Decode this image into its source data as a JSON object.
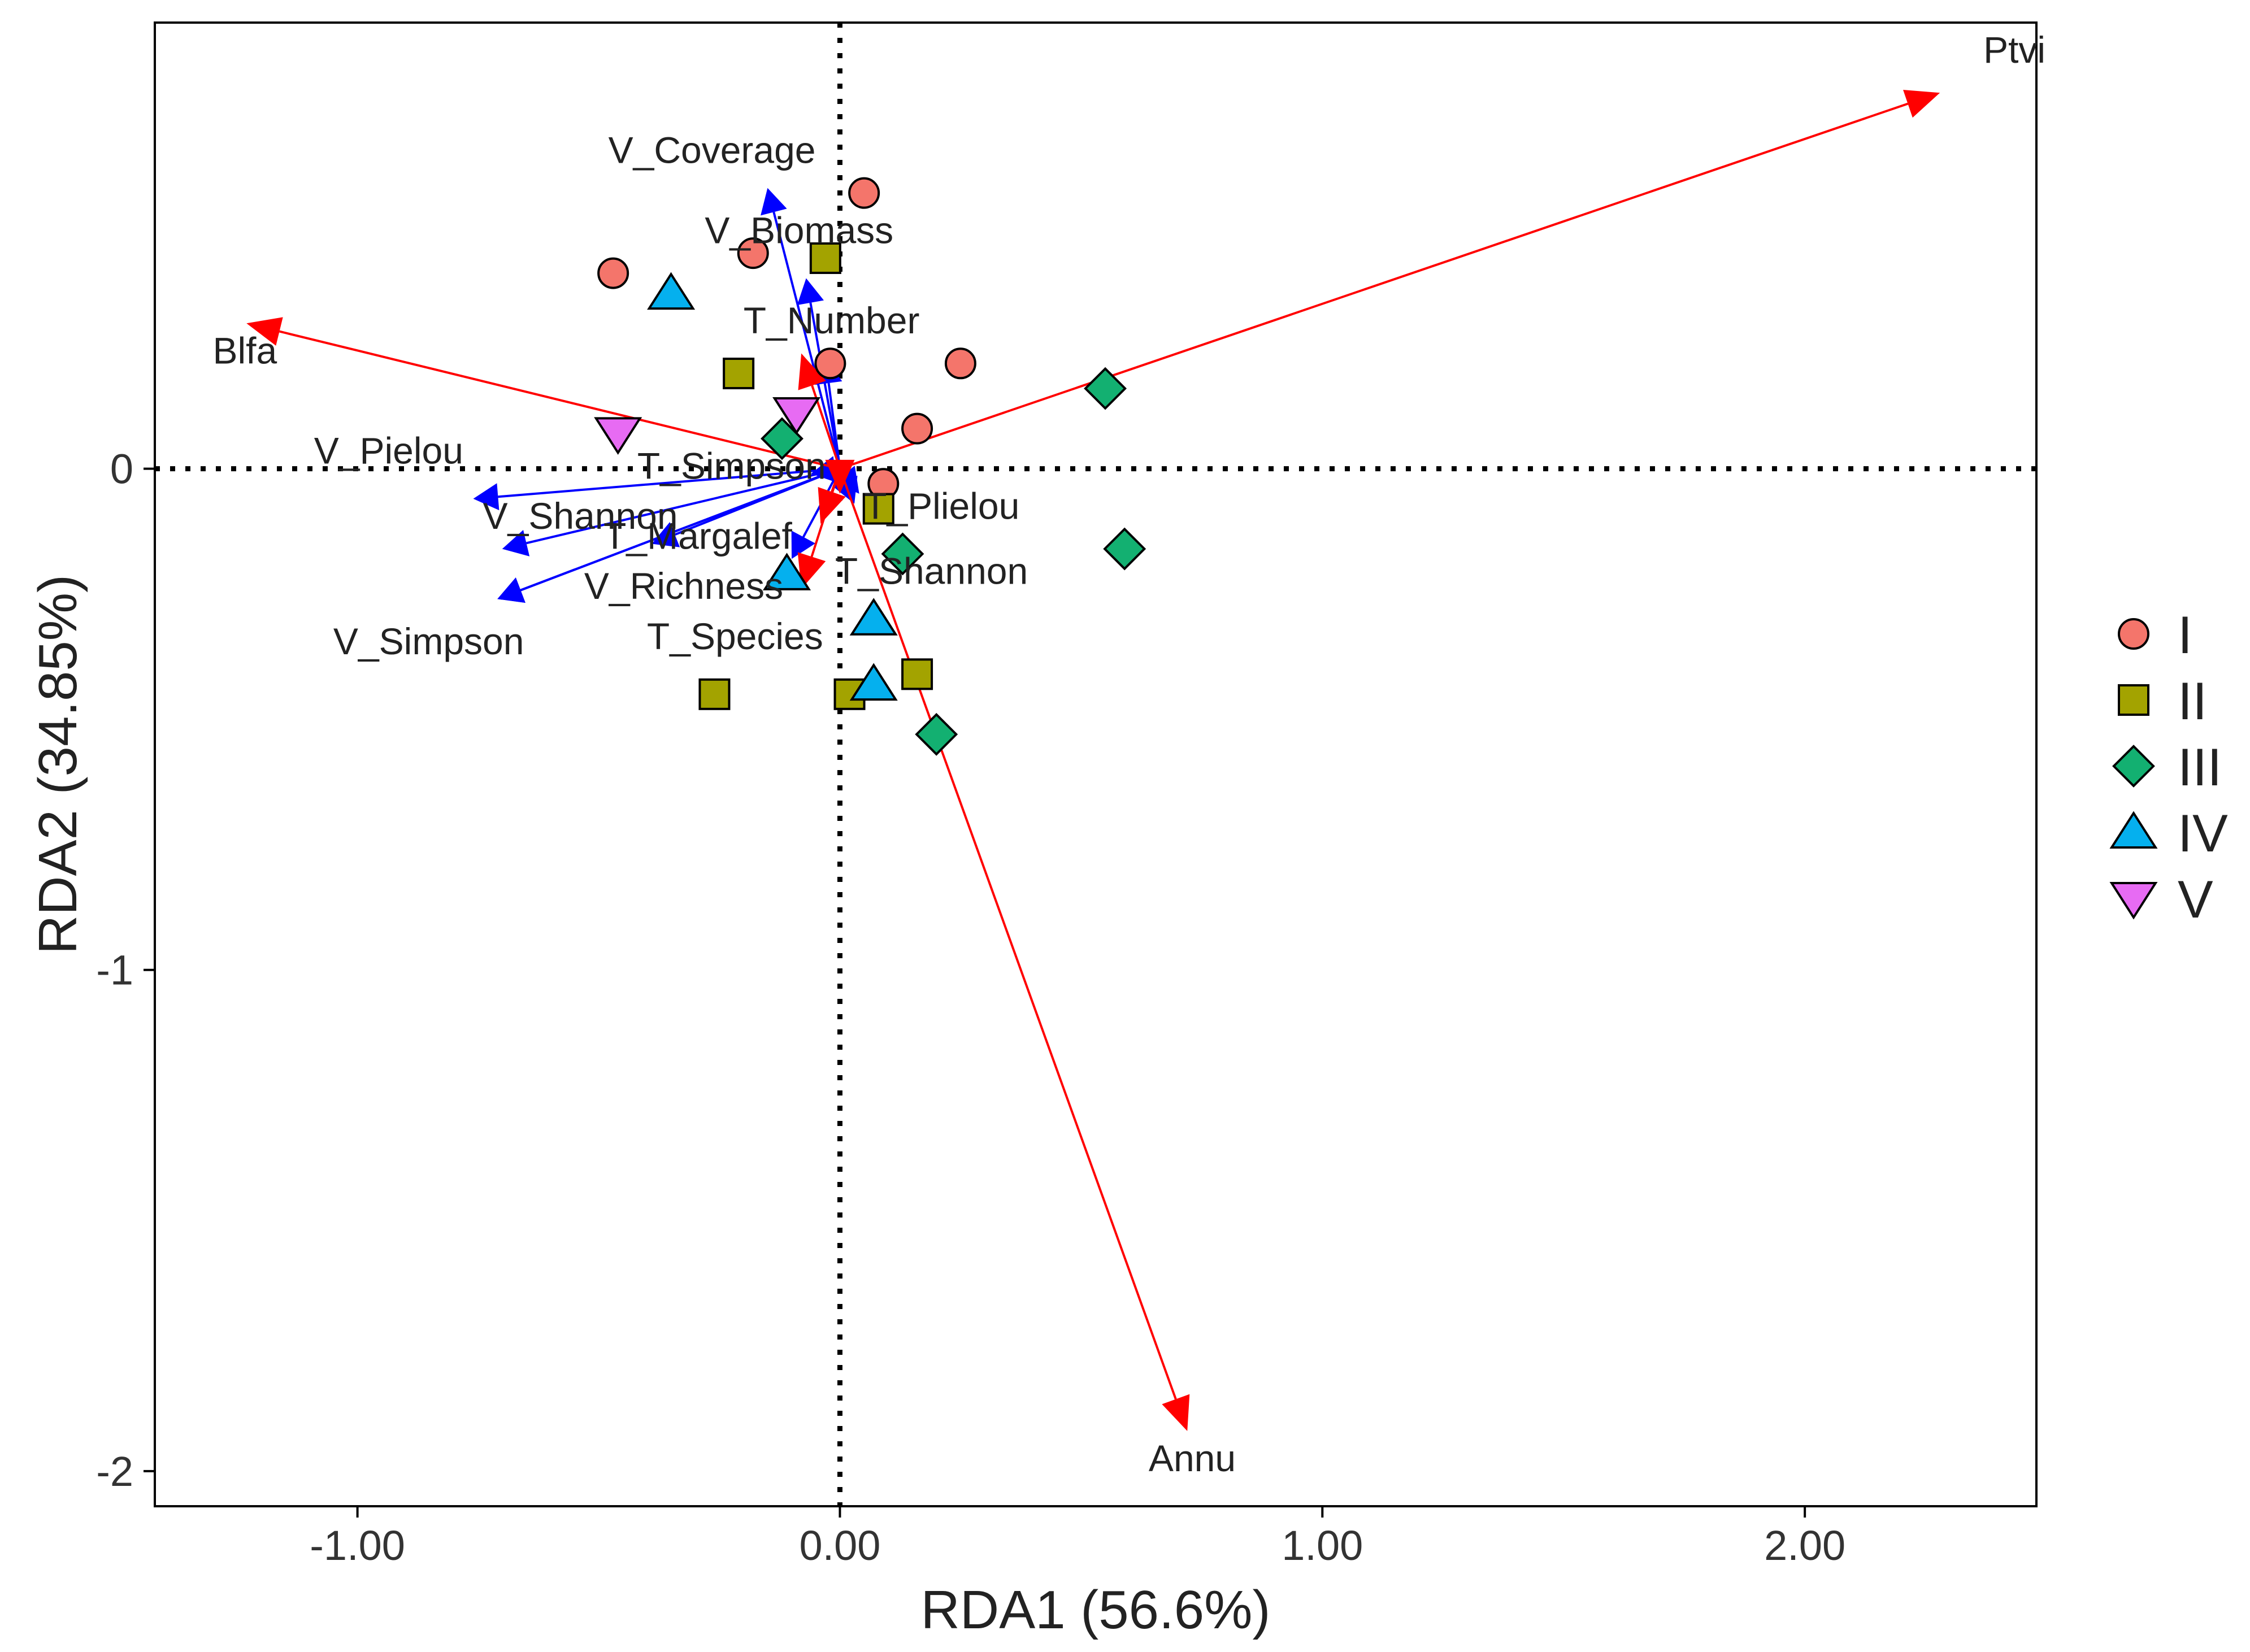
{
  "chart_data": {
    "type": "scatter",
    "subtype": "rda-biplot",
    "title": "",
    "xlabel": "RDA1 (56.6%)",
    "ylabel": "RDA2 (34.85%)",
    "xlim": [
      -1.42,
      2.48
    ],
    "ylim": [
      -2.07,
      0.89
    ],
    "x_ticks": [
      -1.0,
      0.0,
      1.0,
      2.0
    ],
    "x_tick_labels": [
      "-1.00",
      "0.00",
      "1.00",
      "2.00"
    ],
    "y_ticks": [
      0,
      -1,
      -2
    ],
    "y_tick_labels": [
      "0",
      "-1",
      "-2"
    ],
    "zero_lines": "dotted",
    "grid": false,
    "legend_position": "right",
    "colors": {
      "species_arrow": "#ff0000",
      "diversity_arrow": "#0000ff",
      "marker_outline": "#000000"
    },
    "legend": [
      {
        "label": "I",
        "shape": "circle",
        "color": "#f4756b"
      },
      {
        "label": "II",
        "shape": "square",
        "color": "#a3a300"
      },
      {
        "label": "III",
        "shape": "diamond",
        "color": "#13b071"
      },
      {
        "label": "IV",
        "shape": "triangle-up",
        "color": "#05b0ee"
      },
      {
        "label": "V",
        "shape": "triangle-down",
        "color": "#e76bf3"
      }
    ],
    "species_arrows": [
      {
        "name": "Ptvi",
        "x": 2.28,
        "y": 0.75,
        "label_x": 2.37,
        "label_y": 0.81
      },
      {
        "name": "Blfa",
        "x": -1.23,
        "y": 0.29,
        "label_x": -1.3,
        "label_y": 0.21
      },
      {
        "name": "Annu",
        "x": 0.72,
        "y": -1.92,
        "label_x": 0.64,
        "label_y": -2.0
      },
      {
        "name": "",
        "x": -0.08,
        "y": 0.23
      },
      {
        "name": "",
        "x": -0.08,
        "y": -0.24
      },
      {
        "name": "",
        "x": -0.04,
        "y": -0.11
      },
      {
        "name": "",
        "x": 0.0,
        "y": -0.05
      }
    ],
    "diversity_arrows": [
      {
        "name": "V_Coverage",
        "x": -0.15,
        "y": 0.56,
        "label_x": -0.48,
        "label_y": 0.61
      },
      {
        "name": "V_Biomass",
        "x": -0.07,
        "y": 0.38,
        "label_x": -0.28,
        "label_y": 0.45
      },
      {
        "name": "T_Number",
        "x": -0.03,
        "y": 0.22,
        "label_x": -0.2,
        "label_y": 0.27
      },
      {
        "name": "V_Pielou",
        "x": -0.76,
        "y": -0.06,
        "label_x": -1.09,
        "label_y": 0.01
      },
      {
        "name": "T_Simpson",
        "x": -0.06,
        "y": -0.01,
        "label_x": -0.42,
        "label_y": -0.02
      },
      {
        "name": "V_Shannon",
        "x": -0.7,
        "y": -0.16,
        "label_x": -0.74,
        "label_y": -0.12
      },
      {
        "name": "T_Margalef",
        "x": -0.39,
        "y": -0.15,
        "label_x": -0.49,
        "label_y": -0.16
      },
      {
        "name": "V_Richness",
        "x": -0.71,
        "y": -0.26,
        "label_x": -0.53,
        "label_y": -0.26
      },
      {
        "name": "V_Simpson",
        "x": -0.71,
        "y": -0.26,
        "label_x": -1.05,
        "label_y": -0.37
      },
      {
        "name": "T_Species",
        "x": -0.1,
        "y": -0.18,
        "label_x": -0.4,
        "label_y": -0.36
      },
      {
        "name": "T_Plielou",
        "x": 0.04,
        "y": -0.05,
        "label_x": 0.05,
        "label_y": -0.1
      },
      {
        "name": "T_Shannon",
        "x": 0.03,
        "y": -0.07,
        "label_x": -0.01,
        "label_y": -0.23
      }
    ],
    "series": [
      {
        "name": "I",
        "points": [
          [
            0.05,
            0.55
          ],
          [
            -0.47,
            0.39
          ],
          [
            -0.18,
            0.43
          ],
          [
            -0.02,
            0.21
          ],
          [
            0.25,
            0.21
          ],
          [
            0.16,
            0.08
          ],
          [
            0.09,
            -0.03
          ]
        ]
      },
      {
        "name": "II",
        "points": [
          [
            -0.03,
            0.42
          ],
          [
            -0.21,
            0.19
          ],
          [
            0.08,
            -0.08
          ],
          [
            0.16,
            -0.41
          ],
          [
            -0.26,
            -0.45
          ],
          [
            0.02,
            -0.45
          ]
        ]
      },
      {
        "name": "III",
        "points": [
          [
            0.55,
            0.16
          ],
          [
            -0.12,
            0.06
          ],
          [
            0.13,
            -0.17
          ],
          [
            0.59,
            -0.16
          ],
          [
            0.2,
            -0.53
          ]
        ]
      },
      {
        "name": "IV",
        "points": [
          [
            -0.35,
            0.35
          ],
          [
            -0.11,
            -0.21
          ],
          [
            0.07,
            -0.3
          ],
          [
            0.07,
            -0.43
          ]
        ]
      },
      {
        "name": "V",
        "points": [
          [
            -0.46,
            0.07
          ],
          [
            -0.09,
            0.11
          ]
        ]
      }
    ]
  }
}
